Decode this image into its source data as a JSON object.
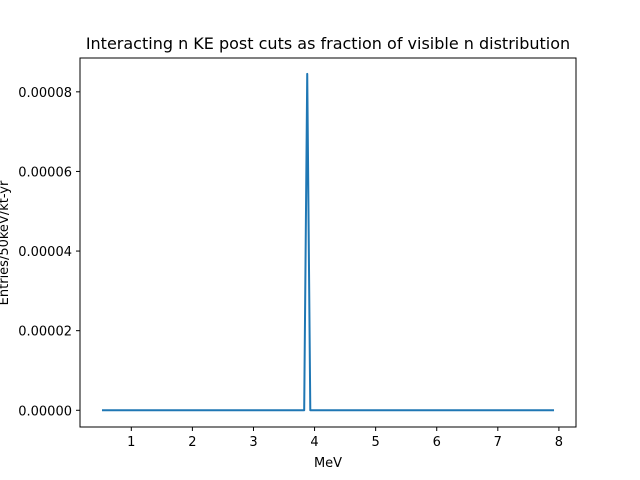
{
  "chart_data": {
    "type": "line",
    "title": "Interacting n KE post cuts as fraction of visible n distribution",
    "xlabel": "MeV",
    "ylabel": "Entries/50keV/kt-yr",
    "xlim": [
      0.16,
      8.28
    ],
    "ylim": [
      -4.2e-06,
      8.85e-05
    ],
    "xticks": [
      1,
      2,
      3,
      4,
      5,
      6,
      7,
      8
    ],
    "xtick_labels": [
      "1",
      "2",
      "3",
      "4",
      "5",
      "6",
      "7",
      "8"
    ],
    "yticks": [
      0,
      2e-05,
      4e-05,
      6e-05,
      8e-05
    ],
    "ytick_labels": [
      "0.00000",
      "0.00002",
      "0.00004",
      "0.00006",
      "0.00008"
    ],
    "grid": false,
    "series": [
      {
        "color": "#1f77b4",
        "x": [
          0.52,
          3.83,
          3.88,
          3.93,
          7.92
        ],
        "y": [
          0,
          0,
          8.45e-05,
          0,
          0
        ]
      }
    ]
  }
}
